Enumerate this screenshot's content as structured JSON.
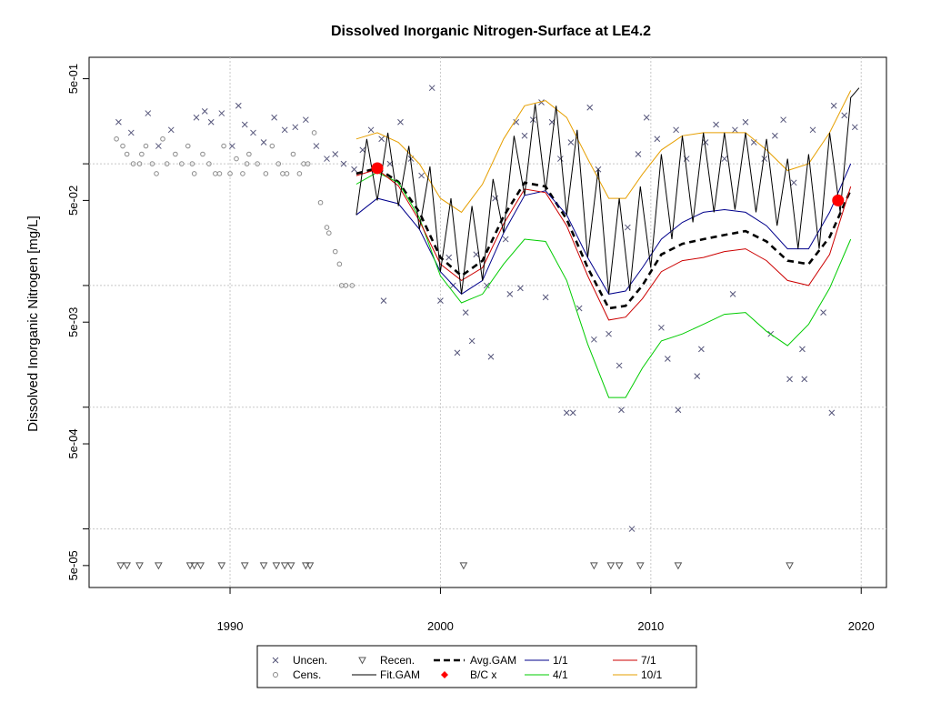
{
  "chart_data": {
    "type": "line",
    "title": "Dissolved Inorganic Nitrogen-Surface at LE4.2",
    "xlabel": "",
    "ylabel": "Dissolved Inorganic Nitrogen [mg/L]",
    "y_scale": "log",
    "xlim": [
      1983.3,
      2021.2
    ],
    "ylim": [
      3.3e-05,
      0.75
    ],
    "x_ticks": [
      1990,
      2000,
      2010,
      2020
    ],
    "x_tick_labels": [
      "1990",
      "2000",
      "2010",
      "2020"
    ],
    "y_ticks": [
      5e-05,
      0.0005,
      0.005,
      0.05,
      0.5
    ],
    "y_tick_labels": [
      "5e-05",
      "5e-04",
      "5e-03",
      "5e-02",
      "5e-01"
    ],
    "grid_y": [
      0.0001,
      0.001,
      0.01,
      0.1
    ],
    "grid": true,
    "legend_position": "bottom",
    "legend": [
      {
        "label": "Uncen.",
        "kind": "x-marker",
        "color": "#555577"
      },
      {
        "label": "Cens.",
        "kind": "circle-marker",
        "color": "#888888"
      },
      {
        "label": "Recen.",
        "kind": "triangle-marker",
        "color": "#555555"
      },
      {
        "label": "Fit.GAM",
        "kind": "line",
        "color": "#000000"
      },
      {
        "label": "Avg.GAM",
        "kind": "dashed-line",
        "color": "#000000"
      },
      {
        "label": "B/C x",
        "kind": "dot",
        "color": "#ff0000"
      },
      {
        "label": "1/1",
        "kind": "line",
        "color": "#00008b"
      },
      {
        "label": "4/1",
        "kind": "line",
        "color": "#00cc00"
      },
      {
        "label": "7/1",
        "kind": "line",
        "color": "#cc0000"
      },
      {
        "label": "10/1",
        "kind": "line",
        "color": "#e69f00"
      }
    ],
    "series": [
      {
        "name": "Avg.GAM",
        "color": "#000000",
        "style": "dashed",
        "x": [
          1996.0,
          1997.0,
          1998.0,
          1999.0,
          2000.0,
          2001.0,
          2002.0,
          2003.0,
          2004.0,
          2005.0,
          2006.0,
          2007.0,
          2008.0,
          2008.8,
          2009.6,
          2010.5,
          2011.5,
          2012.5,
          2013.5,
          2014.5,
          2015.5,
          2016.5,
          2017.5,
          2018.5,
          2019.5
        ],
        "y": [
          0.083,
          0.092,
          0.071,
          0.04,
          0.017,
          0.012,
          0.016,
          0.037,
          0.07,
          0.065,
          0.035,
          0.014,
          0.0065,
          0.0068,
          0.01,
          0.018,
          0.022,
          0.024,
          0.026,
          0.028,
          0.023,
          0.016,
          0.015,
          0.025,
          0.061
        ]
      },
      {
        "name": "1/1",
        "color": "#00008b",
        "style": "solid",
        "x": [
          1996.0,
          1997.0,
          1998.0,
          1999.0,
          2000.0,
          2001.0,
          2002.0,
          2003.0,
          2004.0,
          2005.0,
          2006.0,
          2007.0,
          2008.0,
          2008.8,
          2009.6,
          2010.5,
          2011.5,
          2012.5,
          2013.5,
          2014.5,
          2015.5,
          2016.5,
          2017.5,
          2018.5,
          2019.5
        ],
        "y": [
          0.038,
          0.052,
          0.047,
          0.029,
          0.013,
          0.0085,
          0.011,
          0.027,
          0.055,
          0.06,
          0.038,
          0.017,
          0.0085,
          0.009,
          0.014,
          0.024,
          0.033,
          0.04,
          0.042,
          0.04,
          0.031,
          0.02,
          0.02,
          0.04,
          0.1
        ]
      },
      {
        "name": "4/1",
        "color": "#00cc00",
        "style": "solid",
        "x": [
          1996.0,
          1997.0,
          1998.0,
          1999.0,
          2000.0,
          2001.0,
          2002.0,
          2003.0,
          2004.0,
          2005.0,
          2006.0,
          2007.0,
          2008.0,
          2008.8,
          2009.6,
          2010.5,
          2011.5,
          2012.5,
          2013.5,
          2014.5,
          2015.5,
          2016.5,
          2017.5,
          2018.5,
          2019.5
        ],
        "y": [
          0.068,
          0.085,
          0.07,
          0.036,
          0.012,
          0.0072,
          0.0085,
          0.015,
          0.024,
          0.023,
          0.011,
          0.0033,
          0.0012,
          0.0012,
          0.0021,
          0.0035,
          0.004,
          0.0048,
          0.0058,
          0.006,
          0.0042,
          0.0032,
          0.0048,
          0.0095,
          0.024
        ]
      },
      {
        "name": "7/1",
        "color": "#cc0000",
        "style": "solid",
        "x": [
          1996.0,
          1997.0,
          1998.0,
          1999.0,
          2000.0,
          2001.0,
          2002.0,
          2003.0,
          2004.0,
          2005.0,
          2006.0,
          2007.0,
          2008.0,
          2008.8,
          2009.6,
          2010.5,
          2011.5,
          2012.5,
          2013.5,
          2014.5,
          2015.5,
          2016.5,
          2017.5,
          2018.5,
          2019.5
        ],
        "y": [
          0.08,
          0.09,
          0.066,
          0.034,
          0.015,
          0.011,
          0.014,
          0.032,
          0.062,
          0.058,
          0.031,
          0.012,
          0.0052,
          0.0055,
          0.0078,
          0.013,
          0.016,
          0.017,
          0.019,
          0.02,
          0.016,
          0.011,
          0.01,
          0.018,
          0.065
        ]
      },
      {
        "name": "10/1",
        "color": "#e69f00",
        "style": "solid",
        "x": [
          1996.0,
          1997.0,
          1998.0,
          1999.0,
          2000.0,
          2001.0,
          2002.0,
          2003.0,
          2004.0,
          2005.0,
          2006.0,
          2007.0,
          2008.0,
          2008.8,
          2009.6,
          2010.5,
          2011.5,
          2012.5,
          2013.5,
          2014.5,
          2015.5,
          2016.5,
          2017.5,
          2018.5,
          2019.5
        ],
        "y": [
          0.16,
          0.18,
          0.15,
          0.1,
          0.052,
          0.04,
          0.068,
          0.16,
          0.3,
          0.33,
          0.24,
          0.11,
          0.052,
          0.052,
          0.082,
          0.13,
          0.17,
          0.18,
          0.18,
          0.18,
          0.13,
          0.088,
          0.1,
          0.18,
          0.4
        ]
      },
      {
        "name": "Fit.GAM",
        "color": "#000000",
        "style": "solid",
        "x": [
          1996.0,
          1996.5,
          1997.0,
          1997.5,
          1998.0,
          1998.5,
          1999.0,
          1999.5,
          2000.0,
          2000.5,
          2001.0,
          2001.5,
          2002.0,
          2002.5,
          2003.0,
          2003.5,
          2004.0,
          2004.5,
          2005.0,
          2005.5,
          2006.0,
          2006.5,
          2007.0,
          2007.5,
          2008.0,
          2008.5,
          2009.0,
          2009.5,
          2010.0,
          2010.5,
          2011.0,
          2011.5,
          2012.0,
          2012.5,
          2013.0,
          2013.5,
          2014.0,
          2014.5,
          2015.0,
          2015.5,
          2016.0,
          2016.5,
          2017.0,
          2017.5,
          2018.0,
          2018.5,
          2019.0,
          2019.5,
          2019.9
        ],
        "y": [
          0.038,
          0.16,
          0.05,
          0.18,
          0.045,
          0.14,
          0.029,
          0.095,
          0.013,
          0.052,
          0.0085,
          0.045,
          0.011,
          0.075,
          0.027,
          0.17,
          0.055,
          0.31,
          0.06,
          0.3,
          0.038,
          0.19,
          0.017,
          0.09,
          0.0085,
          0.052,
          0.009,
          0.065,
          0.014,
          0.12,
          0.024,
          0.17,
          0.033,
          0.18,
          0.04,
          0.18,
          0.042,
          0.18,
          0.04,
          0.16,
          0.031,
          0.11,
          0.02,
          0.12,
          0.02,
          0.18,
          0.04,
          0.35,
          0.42
        ]
      }
    ],
    "bc_points": {
      "label": "B/C x",
      "color": "#ff0000",
      "x": [
        1997.0,
        2018.9
      ],
      "y": [
        0.092,
        0.05
      ]
    },
    "uncensored": {
      "label": "Uncen.",
      "x": [
        1984.7,
        1985.3,
        1986.1,
        1986.6,
        1987.2,
        1988.4,
        1988.8,
        1989.1,
        1989.6,
        1990.1,
        1990.4,
        1990.7,
        1991.1,
        1991.6,
        1992.1,
        1992.6,
        1993.1,
        1993.6,
        1994.1,
        1994.6,
        1995.0,
        1995.4,
        1995.9,
        1996.3,
        1996.7,
        1997.2,
        1997.6,
        1998.1,
        1998.6,
        1999.1,
        1999.6,
        2000.0,
        2000.4,
        2000.8,
        2001.2,
        2001.7,
        2002.2,
        2002.6,
        2003.1,
        2003.6,
        2004.0,
        2004.4,
        2004.8,
        2005.3,
        2005.7,
        2006.2,
        2006.6,
        2007.1,
        2007.5,
        2008.0,
        2008.5,
        2008.9,
        2009.4,
        2009.8,
        2010.3,
        2010.8,
        2011.2,
        2011.7,
        2012.2,
        2012.6,
        2013.1,
        2013.5,
        2014.0,
        2014.5,
        2014.9,
        2015.4,
        2015.9,
        2016.3,
        2016.8,
        2017.2,
        2017.7,
        2018.2,
        2018.7,
        2019.2,
        2019.7,
        2001.5,
        2002.4,
        2003.8,
        2005.0,
        2006.0,
        2007.3,
        2009.1,
        2010.5,
        2012.4,
        2013.9,
        2015.7,
        2017.3,
        2018.6,
        2000.6,
        2003.3,
        2006.3,
        2011.3,
        1997.3,
        2008.6,
        2016.6
      ],
      "y": [
        0.22,
        0.18,
        0.26,
        0.14,
        0.19,
        0.24,
        0.27,
        0.22,
        0.26,
        0.14,
        0.3,
        0.21,
        0.18,
        0.15,
        0.24,
        0.19,
        0.2,
        0.23,
        0.14,
        0.11,
        0.12,
        0.1,
        0.09,
        0.13,
        0.19,
        0.16,
        0.1,
        0.22,
        0.11,
        0.08,
        0.42,
        0.0075,
        0.017,
        0.0028,
        0.006,
        0.018,
        0.01,
        0.052,
        0.024,
        0.22,
        0.17,
        0.23,
        0.32,
        0.22,
        0.11,
        0.15,
        0.0065,
        0.29,
        0.09,
        0.004,
        0.0022,
        0.03,
        0.12,
        0.24,
        0.16,
        0.0025,
        0.19,
        0.11,
        0.0018,
        0.15,
        0.21,
        0.11,
        0.19,
        0.22,
        0.15,
        0.11,
        0.17,
        0.23,
        0.07,
        0.003,
        0.19,
        0.006,
        0.3,
        0.25,
        0.2,
        0.0035,
        0.0026,
        0.0095,
        0.008,
        0.0009,
        0.0036,
        0.0001,
        0.0045,
        0.003,
        0.0085,
        0.004,
        0.0017,
        0.0009,
        0.01,
        0.0085,
        0.0009,
        0.00095,
        0.0075,
        0.00095,
        0.0017
      ]
    },
    "censored": {
      "label": "Cens.",
      "x": [
        1984.6,
        1984.9,
        1985.1,
        1985.4,
        1985.7,
        1986.0,
        1986.3,
        1986.8,
        1987.0,
        1987.4,
        1988.0,
        1988.3,
        1988.7,
        1989.0,
        1989.3,
        1989.7,
        1990.0,
        1990.3,
        1990.6,
        1990.9,
        1991.3,
        1991.7,
        1992.0,
        1992.3,
        1992.7,
        1993.0,
        1993.3,
        1993.7,
        1994.0,
        1994.3,
        1994.7,
        1995.0,
        1995.2,
        1995.5,
        1995.8,
        1985.8,
        1986.5,
        1988.2,
        1989.5,
        1990.8,
        1992.5,
        1993.5,
        1994.6,
        1995.3,
        1987.7
      ],
      "y": [
        0.16,
        0.14,
        0.12,
        0.1,
        0.1,
        0.14,
        0.1,
        0.16,
        0.1,
        0.12,
        0.14,
        0.083,
        0.12,
        0.1,
        0.083,
        0.14,
        0.083,
        0.11,
        0.083,
        0.12,
        0.1,
        0.083,
        0.14,
        0.1,
        0.083,
        0.12,
        0.083,
        0.1,
        0.18,
        0.048,
        0.027,
        0.019,
        0.015,
        0.01,
        0.01,
        0.12,
        0.083,
        0.1,
        0.083,
        0.1,
        0.083,
        0.1,
        0.03,
        0.01,
        0.1
      ]
    },
    "recensored": {
      "label": "Recen.",
      "x": [
        1984.8,
        1985.1,
        1985.7,
        1986.6,
        1988.1,
        1988.3,
        1988.6,
        1989.6,
        1990.7,
        1991.6,
        1992.2,
        1992.6,
        1992.9,
        1993.6,
        1993.8,
        2001.1,
        2007.3,
        2008.1,
        2008.5,
        2009.5,
        2011.3,
        2016.6
      ],
      "y": [
        5e-05,
        5e-05,
        5e-05,
        5e-05,
        5e-05,
        5e-05,
        5e-05,
        5e-05,
        5e-05,
        5e-05,
        5e-05,
        5e-05,
        5e-05,
        5e-05,
        5e-05,
        5e-05,
        5e-05,
        5e-05,
        5e-05,
        5e-05,
        5e-05,
        5e-05
      ]
    }
  }
}
